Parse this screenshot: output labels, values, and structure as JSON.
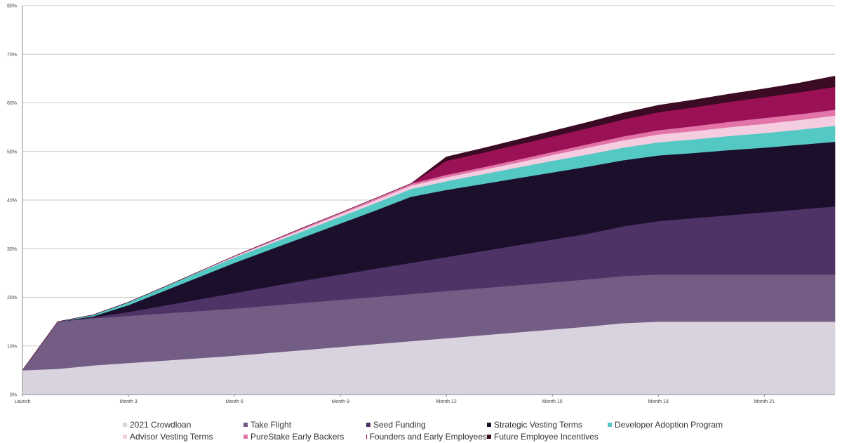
{
  "chart_data": {
    "type": "area",
    "stacked": true,
    "x": [
      0,
      1,
      2,
      3,
      4,
      5,
      6,
      7,
      8,
      9,
      10,
      11,
      12,
      13,
      14,
      15,
      16,
      17,
      18,
      19,
      20,
      21,
      22,
      23
    ],
    "x_ticks": [
      {
        "x": 0,
        "label": "Launch"
      },
      {
        "x": 3,
        "label": "Month 3"
      },
      {
        "x": 6,
        "label": "Month 6"
      },
      {
        "x": 9,
        "label": "Month 9"
      },
      {
        "x": 12,
        "label": "Month 12"
      },
      {
        "x": 15,
        "label": "Month 15"
      },
      {
        "x": 18,
        "label": "Month 18"
      },
      {
        "x": 21,
        "label": "Month 21"
      }
    ],
    "y_ticks": [
      "0%",
      "10%",
      "20%",
      "30%",
      "40%",
      "50%",
      "60%",
      "70%",
      "80%"
    ],
    "ylim": [
      0,
      80
    ],
    "xlim": [
      0,
      23
    ],
    "grid": true,
    "series": [
      {
        "name": "2021 Crowdloan",
        "color": "#d8d3de",
        "values": [
          5,
          5.3,
          6,
          6.5,
          7,
          7.5,
          8,
          8.6,
          9.2,
          9.8,
          10.4,
          11,
          11.6,
          12.2,
          12.8,
          13.4,
          14,
          14.7,
          15,
          15,
          15,
          15,
          15,
          15
        ]
      },
      {
        "name": "Take Flight",
        "color": "#735d85",
        "values": [
          0,
          9.7,
          9.7,
          9.7,
          9.7,
          9.7,
          9.7,
          9.7,
          9.7,
          9.7,
          9.7,
          9.7,
          9.7,
          9.7,
          9.7,
          9.7,
          9.7,
          9.7,
          9.7,
          9.7,
          9.7,
          9.7,
          9.7,
          9.7
        ]
      },
      {
        "name": "Seed Funding",
        "color": "#4e3367",
        "values": [
          0,
          0,
          0.2,
          0.8,
          1.6,
          2.4,
          3.2,
          3.9,
          4.6,
          5.2,
          5.8,
          6.4,
          7,
          7.6,
          8.2,
          8.8,
          9.4,
          10.2,
          11,
          11.6,
          12.2,
          12.8,
          13.4,
          14
        ]
      },
      {
        "name": "Strategic Vesting Terms",
        "color": "#1c0f2c",
        "values": [
          0,
          0,
          0.2,
          1.4,
          3,
          4.6,
          6.2,
          7.6,
          9,
          10.5,
          12,
          13.6,
          13.8,
          13.8,
          13.8,
          13.8,
          13.8,
          13.6,
          13.5,
          13.4,
          13.4,
          13.3,
          13.3,
          13.3
        ]
      },
      {
        "name": "Developer Adoption Program",
        "color": "#54c9c4",
        "values": [
          0,
          0,
          0.3,
          0.6,
          0.8,
          1,
          1.1,
          1.2,
          1.3,
          1.4,
          1.5,
          1.6,
          1.8,
          2,
          2.2,
          2.4,
          2.5,
          2.6,
          2.7,
          2.8,
          2.9,
          3,
          3.1,
          3.3
        ]
      },
      {
        "name": "Advisor Vesting Terms",
        "color": "#f4cde0",
        "values": [
          0,
          0,
          0,
          0,
          0,
          0.1,
          0.2,
          0.3,
          0.4,
          0.5,
          0.6,
          0.7,
          0.8,
          0.9,
          1,
          1.2,
          1.4,
          1.5,
          1.6,
          1.7,
          1.8,
          1.9,
          2,
          2.1
        ]
      },
      {
        "name": "PureStake Early Backers",
        "color": "#e274a8",
        "values": [
          0,
          0,
          0,
          0,
          0,
          0,
          0.1,
          0.2,
          0.3,
          0.3,
          0.4,
          0.4,
          0.5,
          0.5,
          0.6,
          0.6,
          0.7,
          0.8,
          0.9,
          1,
          1.1,
          1.2,
          1.2,
          1.2
        ]
      },
      {
        "name": "Founders and Early Employees",
        "color": "#9a1156",
        "values": [
          0,
          0,
          0,
          0,
          0,
          0,
          0,
          0,
          0,
          0,
          0,
          0,
          2.9,
          3,
          3.1,
          3.2,
          3.3,
          3.5,
          3.7,
          3.9,
          4.1,
          4.3,
          4.5,
          4.7
        ]
      },
      {
        "name": "Future Employee Incentives",
        "color": "#3b0a23",
        "values": [
          0,
          0,
          0,
          0,
          0,
          0,
          0,
          0,
          0,
          0,
          0,
          0,
          0.8,
          0.9,
          1,
          1.1,
          1.2,
          1.3,
          1.4,
          1.5,
          1.6,
          1.7,
          1.9,
          2.2
        ]
      }
    ],
    "legend_position": "bottom"
  }
}
